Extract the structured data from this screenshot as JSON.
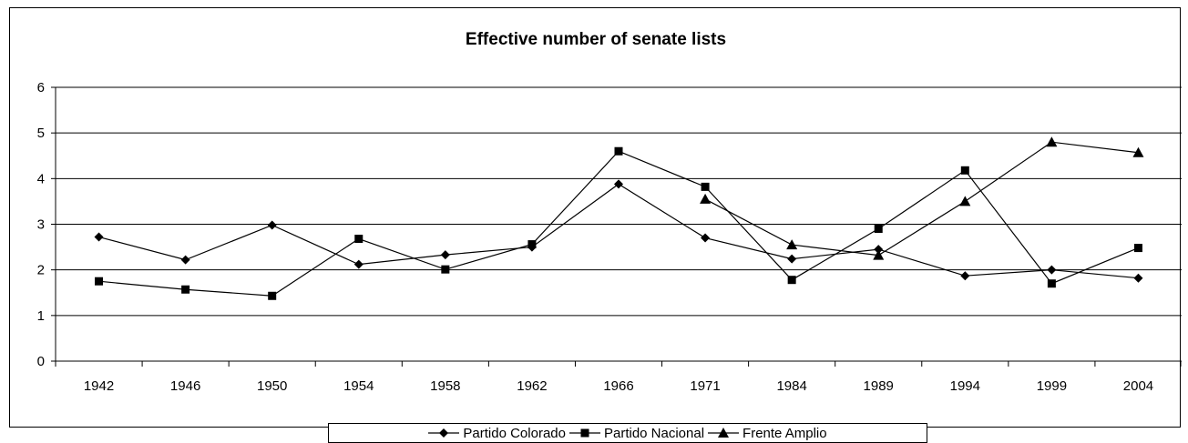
{
  "chart_data": {
    "type": "line",
    "title": "Effective number of senate lists",
    "xlabel": "",
    "ylabel": "",
    "categories": [
      "1942",
      "1946",
      "1950",
      "1954",
      "1958",
      "1962",
      "1966",
      "1971",
      "1984",
      "1989",
      "1994",
      "1999",
      "2004"
    ],
    "ylim": [
      0,
      6
    ],
    "yticks": [
      0,
      1,
      2,
      3,
      4,
      5,
      6
    ],
    "grid": true,
    "legend_position": "bottom",
    "series": [
      {
        "name": "Partido Colorado",
        "marker": "diamond",
        "values": [
          2.72,
          2.22,
          2.98,
          2.12,
          2.33,
          2.5,
          3.88,
          2.7,
          2.24,
          2.45,
          1.87,
          2.0,
          1.82
        ]
      },
      {
        "name": "Partido Nacional",
        "marker": "square",
        "values": [
          1.75,
          1.57,
          1.43,
          2.68,
          2.01,
          2.56,
          4.6,
          3.82,
          1.78,
          2.9,
          4.18,
          1.7,
          2.48
        ]
      },
      {
        "name": "Frente Amplio",
        "marker": "triangle",
        "values": [
          null,
          null,
          null,
          null,
          null,
          null,
          null,
          3.55,
          2.55,
          2.32,
          3.5,
          4.8,
          4.57
        ]
      }
    ],
    "colors": {
      "line": "#000000",
      "grid": "#000000",
      "background": "#ffffff"
    }
  }
}
